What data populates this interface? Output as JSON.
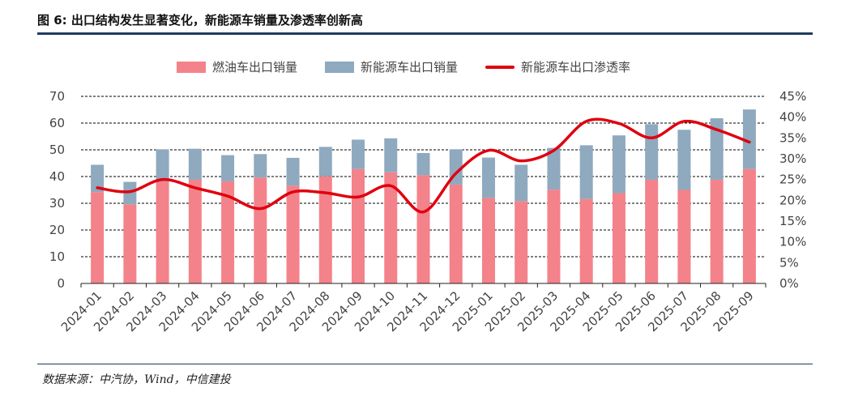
{
  "figure": {
    "title": "图 6: 出口结构发生显著变化，新能源车销量及渗透率创新高",
    "source": "数据来源：中汽协，Wind，中信建投"
  },
  "colors": {
    "fuel": "#F4828A",
    "nev": "#8FA9BF",
    "line": "#E0000F",
    "rule": "#1F3A5F"
  },
  "chart_data": {
    "type": "bar",
    "stacked": true,
    "title": "",
    "categories": [
      "2024-01",
      "2024-02",
      "2024-03",
      "2024-04",
      "2024-05",
      "2024-06",
      "2024-07",
      "2024-08",
      "2024-09",
      "2024-10",
      "2024-11",
      "2024-12",
      "2025-01",
      "2025-02",
      "2025-03",
      "2025-04",
      "2025-05",
      "2025-06",
      "2025-07",
      "2025-08",
      "2025-09"
    ],
    "series": [
      {
        "name": "燃油车出口销量",
        "kind": "bar",
        "axis": "left",
        "values": [
          34.2,
          29.6,
          38.2,
          38.8,
          38.2,
          39.6,
          36.6,
          40.1,
          42.8,
          41.6,
          40.5,
          37.0,
          32.0,
          30.8,
          35.1,
          31.6,
          33.8,
          38.8,
          35.0,
          38.8,
          42.8
        ]
      },
      {
        "name": "新能源车出口销量",
        "kind": "bar",
        "axis": "left",
        "values": [
          10.2,
          8.4,
          12.0,
          11.6,
          9.8,
          8.8,
          10.4,
          11.0,
          11.0,
          12.7,
          8.3,
          13.2,
          15.1,
          13.6,
          15.6,
          20.1,
          21.6,
          20.8,
          22.5,
          23.0,
          22.3
        ]
      },
      {
        "name": "新能源车出口渗透率",
        "kind": "line",
        "axis": "right",
        "unit": "%",
        "values": [
          23.0,
          22.1,
          25.0,
          23.0,
          21.0,
          18.0,
          22.0,
          21.8,
          20.8,
          23.5,
          17.2,
          26.5,
          32.0,
          29.5,
          32.0,
          39.0,
          38.5,
          35.0,
          39.0,
          37.0,
          34.0
        ]
      }
    ],
    "yleft": {
      "min": 0,
      "max": 70,
      "step": 10,
      "ticks": [
        "0",
        "10",
        "20",
        "30",
        "40",
        "50",
        "60",
        "70"
      ]
    },
    "yright": {
      "min": 0,
      "max": 45,
      "step": 5,
      "ticks": [
        "0%",
        "5%",
        "10%",
        "15%",
        "20%",
        "25%",
        "30%",
        "35%",
        "40%",
        "45%"
      ]
    },
    "grid": true,
    "legend_position": "top"
  }
}
